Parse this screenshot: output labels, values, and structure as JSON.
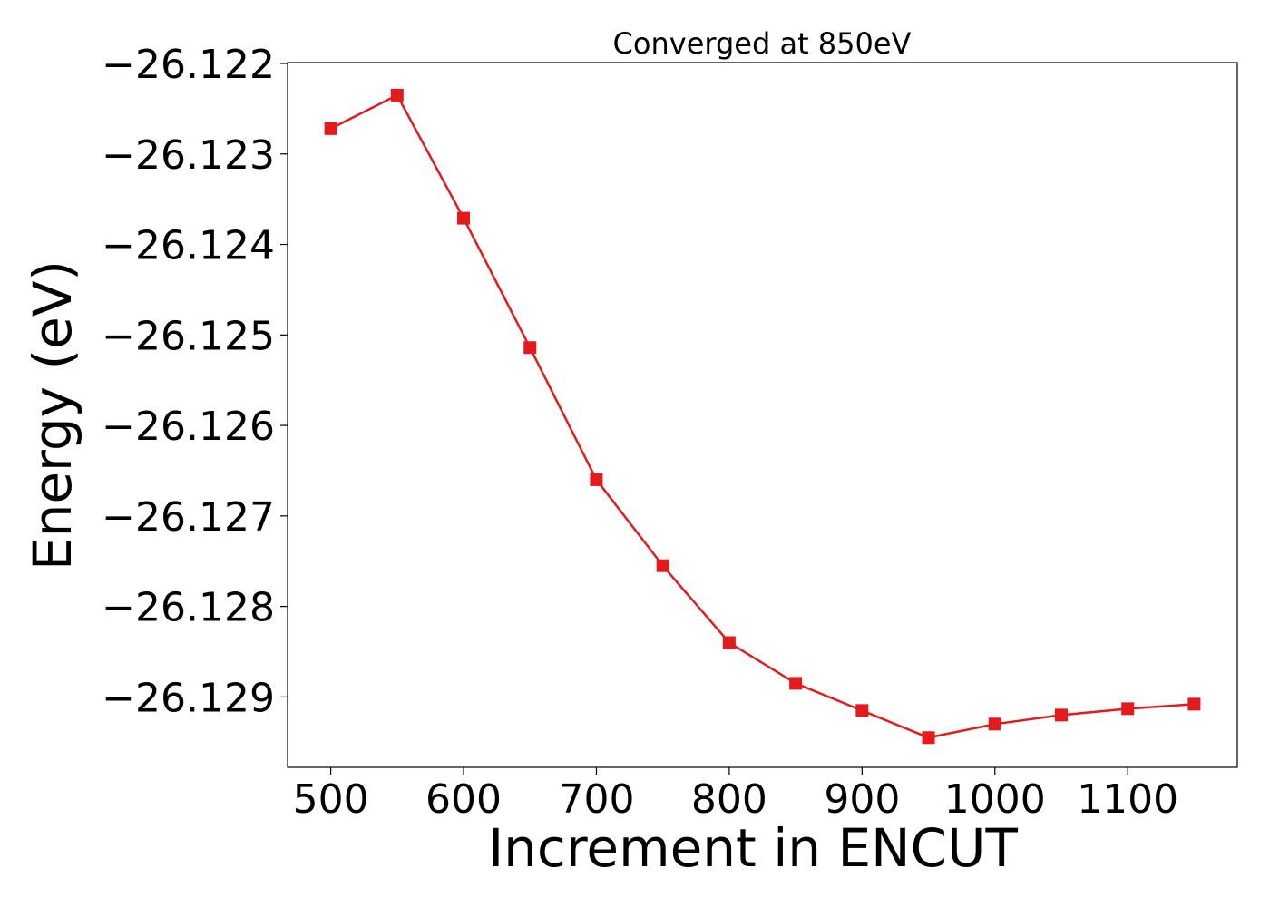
{
  "chart_data": {
    "type": "line",
    "title": "Converged at 850eV",
    "xlabel": "Increment in ENCUT",
    "ylabel": "Energy (eV)",
    "x": [
      500,
      550,
      600,
      650,
      700,
      750,
      800,
      850,
      900,
      950,
      1000,
      1050,
      1100,
      1150
    ],
    "series": [
      {
        "values": [
          -26.12272,
          -26.12235,
          -26.12371,
          -26.12514,
          -26.1266,
          -26.12755,
          -26.1284,
          -26.12885,
          -26.12915,
          -26.12945,
          -26.1293,
          -26.1292,
          -26.12913,
          -26.12908
        ],
        "color": "#e41a1c",
        "marker": "square"
      }
    ],
    "xlim": [
      467.5,
      1182.5
    ],
    "ylim": [
      -26.129778,
      -26.12199
    ],
    "xticks": [
      500,
      600,
      700,
      800,
      900,
      1000,
      1100
    ],
    "xtick_labels": [
      "500",
      "600",
      "700",
      "800",
      "900",
      "1000",
      "1100"
    ],
    "yticks": [
      -26.122,
      -26.123,
      -26.124,
      -26.125,
      -26.126,
      -26.127,
      -26.128,
      -26.129
    ],
    "ytick_labels": [
      "−26.122",
      "−26.123",
      "−26.124",
      "−26.125",
      "−26.126",
      "−26.127",
      "−26.128",
      "−26.129"
    ],
    "grid": false,
    "legend": false
  }
}
